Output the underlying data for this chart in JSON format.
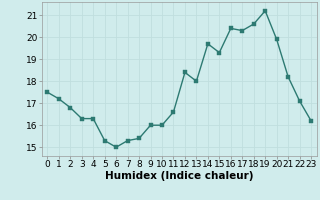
{
  "x": [
    0,
    1,
    2,
    3,
    4,
    5,
    6,
    7,
    8,
    9,
    10,
    11,
    12,
    13,
    14,
    15,
    16,
    17,
    18,
    19,
    20,
    21,
    22,
    23
  ],
  "y": [
    17.5,
    17.2,
    16.8,
    16.3,
    16.3,
    15.3,
    15.0,
    15.3,
    15.4,
    16.0,
    16.0,
    16.6,
    18.4,
    18.0,
    19.7,
    19.3,
    20.4,
    20.3,
    20.6,
    21.2,
    19.9,
    18.2,
    17.1,
    16.2
  ],
  "line_color": "#2d7a72",
  "marker_color": "#2d7a72",
  "bg_color": "#d0ecec",
  "grid_major_color": "#c0dede",
  "grid_minor_color": "#c8e6e6",
  "xlabel": "Humidex (Indice chaleur)",
  "ylim": [
    14.6,
    21.6
  ],
  "xlim": [
    -0.5,
    23.5
  ],
  "yticks": [
    15,
    16,
    17,
    18,
    19,
    20,
    21
  ],
  "xticks": [
    0,
    1,
    2,
    3,
    4,
    5,
    6,
    7,
    8,
    9,
    10,
    11,
    12,
    13,
    14,
    15,
    16,
    17,
    18,
    19,
    20,
    21,
    22,
    23
  ],
  "xlabel_fontsize": 7.5,
  "tick_fontsize": 6.5,
  "linewidth": 1.0,
  "markersize": 2.5
}
